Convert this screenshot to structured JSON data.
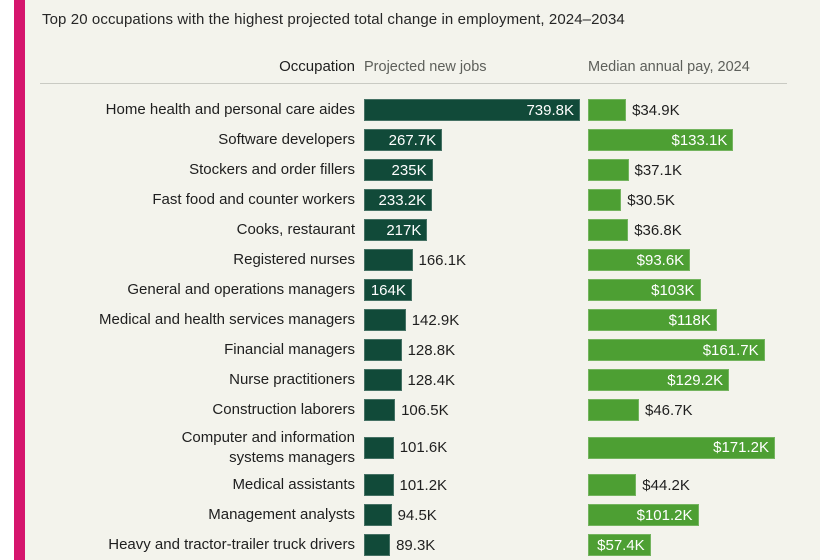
{
  "page": {
    "title": "Top 20 occupations with the highest projected total change in employment, 2024–2034",
    "accent_color": "#d5156d",
    "panel_background": "#f3f3ec"
  },
  "header": {
    "occupation_label": "Occupation",
    "jobs_label": "Projected new jobs",
    "pay_label": "Median annual pay, 2024"
  },
  "chart_data": {
    "type": "bar",
    "orientation": "horizontal",
    "title": "Top 20 occupations with the highest projected total change in employment, 2024–2034",
    "columns": [
      "Occupation",
      "Projected new jobs",
      "Median annual pay, 2024"
    ],
    "series": [
      {
        "name": "Projected new jobs",
        "unit": "jobs (thousands)",
        "color": "#114a39"
      },
      {
        "name": "Median annual pay, 2024",
        "unit": "USD (thousands)",
        "color": "#4d9f33"
      }
    ],
    "colors": {
      "jobs_bar": "#114a39",
      "pay_bar": "#4d9f33"
    },
    "rows": [
      {
        "occupation": "Home health and personal care aides",
        "jobs": 739.8,
        "jobs_label": "739.8K",
        "jobs_label_inside": true,
        "pay": 34.9,
        "pay_label": "$34.9K",
        "pay_label_inside": false
      },
      {
        "occupation": "Software developers",
        "jobs": 267.7,
        "jobs_label": "267.7K",
        "jobs_label_inside": true,
        "pay": 133.1,
        "pay_label": "$133.1K",
        "pay_label_inside": true
      },
      {
        "occupation": "Stockers and order fillers",
        "jobs": 235,
        "jobs_label": "235K",
        "jobs_label_inside": true,
        "pay": 37.1,
        "pay_label": "$37.1K",
        "pay_label_inside": false
      },
      {
        "occupation": "Fast food and counter workers",
        "jobs": 233.2,
        "jobs_label": "233.2K",
        "jobs_label_inside": true,
        "pay": 30.5,
        "pay_label": "$30.5K",
        "pay_label_inside": false
      },
      {
        "occupation": "Cooks, restaurant",
        "jobs": 217,
        "jobs_label": "217K",
        "jobs_label_inside": true,
        "pay": 36.8,
        "pay_label": "$36.8K",
        "pay_label_inside": false
      },
      {
        "occupation": "Registered nurses",
        "jobs": 166.1,
        "jobs_label": "166.1K",
        "jobs_label_inside": false,
        "pay": 93.6,
        "pay_label": "$93.6K",
        "pay_label_inside": true
      },
      {
        "occupation": "General and operations managers",
        "jobs": 164,
        "jobs_label": "164K",
        "jobs_label_inside": true,
        "pay": 103,
        "pay_label": "$103K",
        "pay_label_inside": true
      },
      {
        "occupation": "Medical and health services managers",
        "jobs": 142.9,
        "jobs_label": "142.9K",
        "jobs_label_inside": false,
        "pay": 118,
        "pay_label": "$118K",
        "pay_label_inside": true
      },
      {
        "occupation": "Financial managers",
        "jobs": 128.8,
        "jobs_label": "128.8K",
        "jobs_label_inside": false,
        "pay": 161.7,
        "pay_label": "$161.7K",
        "pay_label_inside": true
      },
      {
        "occupation": "Nurse practitioners",
        "jobs": 128.4,
        "jobs_label": "128.4K",
        "jobs_label_inside": false,
        "pay": 129.2,
        "pay_label": "$129.2K",
        "pay_label_inside": true
      },
      {
        "occupation": "Construction laborers",
        "jobs": 106.5,
        "jobs_label": "106.5K",
        "jobs_label_inside": false,
        "pay": 46.7,
        "pay_label": "$46.7K",
        "pay_label_inside": false
      },
      {
        "occupation": "Computer and information systems managers",
        "occupation_lines": [
          "Computer and information",
          "systems managers"
        ],
        "jobs": 101.6,
        "jobs_label": "101.6K",
        "jobs_label_inside": false,
        "pay": 171.2,
        "pay_label": "$171.2K",
        "pay_label_inside": true
      },
      {
        "occupation": "Medical assistants",
        "jobs": 101.2,
        "jobs_label": "101.2K",
        "jobs_label_inside": false,
        "pay": 44.2,
        "pay_label": "$44.2K",
        "pay_label_inside": false
      },
      {
        "occupation": "Management analysts",
        "jobs": 94.5,
        "jobs_label": "94.5K",
        "jobs_label_inside": false,
        "pay": 101.2,
        "pay_label": "$101.2K",
        "pay_label_inside": true
      },
      {
        "occupation": "Heavy and tractor-trailer truck drivers",
        "jobs": 89.3,
        "jobs_label": "89.3K",
        "jobs_label_inside": false,
        "pay": 57.4,
        "pay_label": "$57.4K",
        "pay_label_inside": true
      }
    ]
  }
}
